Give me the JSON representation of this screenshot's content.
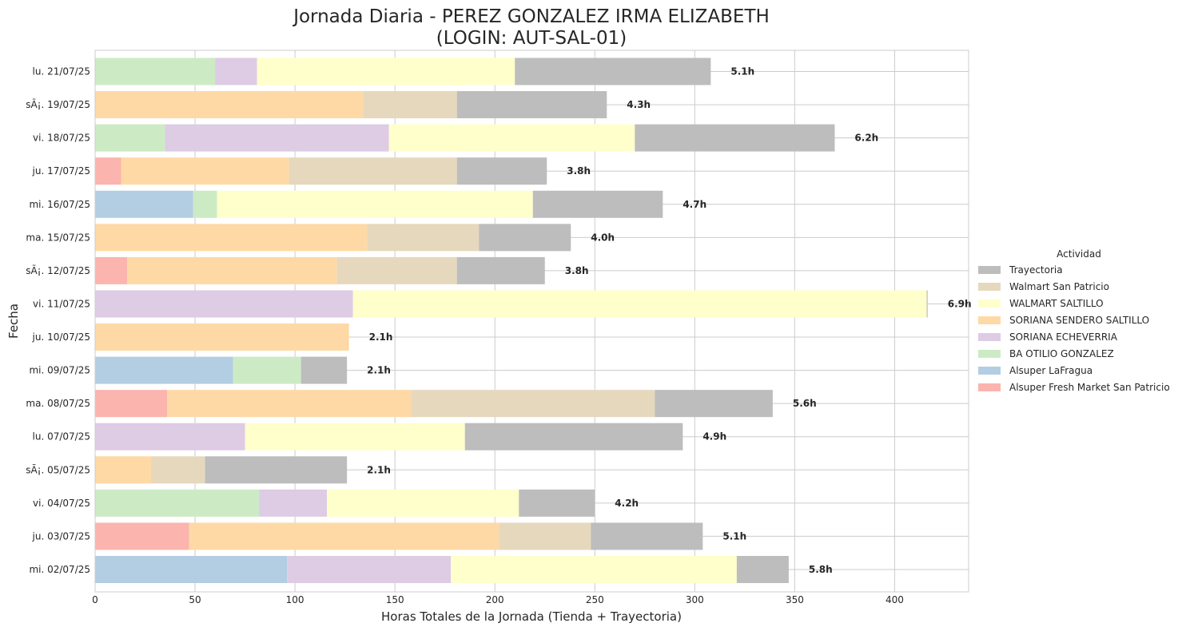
{
  "chart_data": {
    "type": "bar",
    "orientation": "horizontal",
    "stacked": true,
    "title_line1": "Jornada Diaria - PEREZ GONZALEZ IRMA ELIZABETH",
    "title_line2": "(LOGIN: AUT-SAL-01)",
    "xlabel": "Horas Totales de la Jornada (Tienda + Trayectoria)",
    "ylabel": "Fecha",
    "xlim": [
      0,
      437
    ],
    "xticks": [
      0,
      50,
      100,
      150,
      200,
      250,
      300,
      350,
      400
    ],
    "grid": true,
    "legend_title": "Actividad",
    "legend_position": "right",
    "categories": [
      "lu. 21/07/25",
      "sÃ¡. 19/07/25",
      "vi. 18/07/25",
      "ju. 17/07/25",
      "mi. 16/07/25",
      "ma. 15/07/25",
      "sÃ¡. 12/07/25",
      "vi. 11/07/25",
      "ju. 10/07/25",
      "mi. 09/07/25",
      "ma. 08/07/25",
      "lu. 07/07/25",
      "sÃ¡. 05/07/25",
      "vi. 04/07/25",
      "ju. 03/07/25",
      "mi. 02/07/25"
    ],
    "totals_labels": [
      "5.1h",
      "4.3h",
      "6.2h",
      "3.8h",
      "4.7h",
      "4.0h",
      "3.8h",
      "6.9h",
      "2.1h",
      "2.1h",
      "5.6h",
      "4.9h",
      "2.1h",
      "4.2h",
      "5.1h",
      "5.8h"
    ],
    "series": [
      {
        "name": "Alsuper Fresh Market San Patricio",
        "color": "#fbb4ae",
        "values": [
          0,
          0,
          0,
          13,
          0,
          0,
          16,
          0,
          0,
          0,
          36,
          0,
          0,
          0,
          47,
          0
        ]
      },
      {
        "name": "Alsuper LaFragua",
        "color": "#b3cde3",
        "values": [
          0,
          0,
          0,
          0,
          49,
          0,
          0,
          0,
          0,
          69,
          0,
          0,
          0,
          0,
          0,
          96
        ]
      },
      {
        "name": "BA OTILIO GONZALEZ",
        "color": "#ccebc5",
        "values": [
          60,
          0,
          35,
          0,
          12,
          0,
          0,
          0,
          0,
          34,
          0,
          0,
          0,
          82,
          0,
          0
        ]
      },
      {
        "name": "SORIANA ECHEVERRIA",
        "color": "#decbe4",
        "values": [
          21,
          0,
          112,
          0,
          0,
          0,
          0,
          129,
          0,
          0,
          0,
          75,
          0,
          34,
          0,
          82
        ]
      },
      {
        "name": "SORIANA SENDERO SALTILLO",
        "color": "#fed9a6",
        "values": [
          0,
          134,
          0,
          84,
          0,
          136,
          105,
          0,
          127,
          0,
          122,
          0,
          28,
          0,
          155,
          0
        ]
      },
      {
        "name": "WALMART SALTILLO",
        "color": "#ffffcc",
        "values": [
          129,
          0,
          123,
          0,
          158,
          0,
          0,
          287,
          0,
          0,
          0,
          110,
          0,
          96,
          0,
          143
        ]
      },
      {
        "name": "Walmart San Patricio",
        "color": "#e5d8bd",
        "values": [
          0,
          47,
          0,
          84,
          0,
          56,
          60,
          0,
          0,
          0,
          122,
          0,
          27,
          0,
          46,
          0
        ]
      },
      {
        "name": "Trayectoria",
        "color": "#bdbdbd",
        "values": [
          98,
          75,
          100,
          45,
          65,
          46,
          44,
          0.5,
          0,
          23,
          59,
          109,
          71,
          38,
          56,
          26
        ]
      }
    ],
    "legend_order": [
      "Trayectoria",
      "Walmart San Patricio",
      "WALMART SALTILLO",
      "SORIANA SENDERO SALTILLO",
      "SORIANA ECHEVERRIA",
      "BA OTILIO GONZALEZ",
      "Alsuper LaFragua",
      "Alsuper Fresh Market San Patricio"
    ]
  }
}
